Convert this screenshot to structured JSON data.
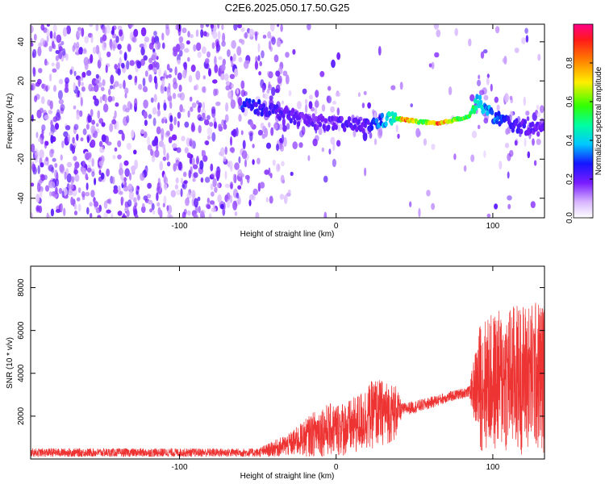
{
  "title": "C2E6.2025.050.17.50.G25",
  "chart_data": [
    {
      "type": "heatmap",
      "xlabel": "Height of straight line (km)",
      "ylabel": "Frequency (Hz)",
      "xlim": [
        -195,
        133
      ],
      "ylim": [
        -50,
        49
      ],
      "xticks": [
        -100,
        0,
        100
      ],
      "yticks": [
        -40,
        -20,
        0,
        20,
        40
      ],
      "colorbar": {
        "label": "Normalized spectral amplitude",
        "range": [
          0.0,
          1.0
        ],
        "ticks": [
          0.0,
          0.2,
          0.4,
          0.6,
          0.8
        ]
      },
      "ridge": [
        {
          "x": -60,
          "freq": 8,
          "amp": 0.3
        },
        {
          "x": -40,
          "freq": 5,
          "amp": 0.25
        },
        {
          "x": -20,
          "freq": 0,
          "amp": 0.2
        },
        {
          "x": 0,
          "freq": -2,
          "amp": 0.22
        },
        {
          "x": 20,
          "freq": -3,
          "amp": 0.25
        },
        {
          "x": 35,
          "freq": 1,
          "amp": 0.45
        },
        {
          "x": 45,
          "freq": 0,
          "amp": 0.9
        },
        {
          "x": 55,
          "freq": -1,
          "amp": 0.6
        },
        {
          "x": 65,
          "freq": -2,
          "amp": 0.95
        },
        {
          "x": 75,
          "freq": 0,
          "amp": 0.7
        },
        {
          "x": 85,
          "freq": 2,
          "amp": 0.6
        },
        {
          "x": 90,
          "freq": 10,
          "amp": 0.45
        },
        {
          "x": 100,
          "freq": 2,
          "amp": 0.35
        },
        {
          "x": 115,
          "freq": -3,
          "amp": 0.25
        },
        {
          "x": 130,
          "freq": -5,
          "amp": 0.2
        }
      ]
    },
    {
      "type": "line",
      "xlabel": "Height of straight line (km)",
      "ylabel": "SNR (10 * v/v)",
      "xlim": [
        -195,
        133
      ],
      "ylim": [
        0,
        9000
      ],
      "xticks": [
        -100,
        0,
        100
      ],
      "yticks": [
        2000,
        4000,
        6000,
        8000
      ],
      "color": "#ee3333",
      "envelope": [
        {
          "x": -195,
          "low": 100,
          "high": 500
        },
        {
          "x": -50,
          "low": 100,
          "high": 500
        },
        {
          "x": -30,
          "low": 100,
          "high": 1200
        },
        {
          "x": -10,
          "low": 100,
          "high": 2500
        },
        {
          "x": 10,
          "low": 100,
          "high": 2800
        },
        {
          "x": 25,
          "low": 500,
          "high": 3800
        },
        {
          "x": 38,
          "low": 800,
          "high": 3500
        },
        {
          "x": 42,
          "low": 2000,
          "high": 2600
        },
        {
          "x": 55,
          "low": 2200,
          "high": 2800
        },
        {
          "x": 70,
          "low": 2600,
          "high": 3100
        },
        {
          "x": 85,
          "low": 2900,
          "high": 3400
        },
        {
          "x": 92,
          "low": 300,
          "high": 6500
        },
        {
          "x": 110,
          "low": 200,
          "high": 7200
        },
        {
          "x": 133,
          "low": 200,
          "high": 7500
        }
      ]
    }
  ]
}
